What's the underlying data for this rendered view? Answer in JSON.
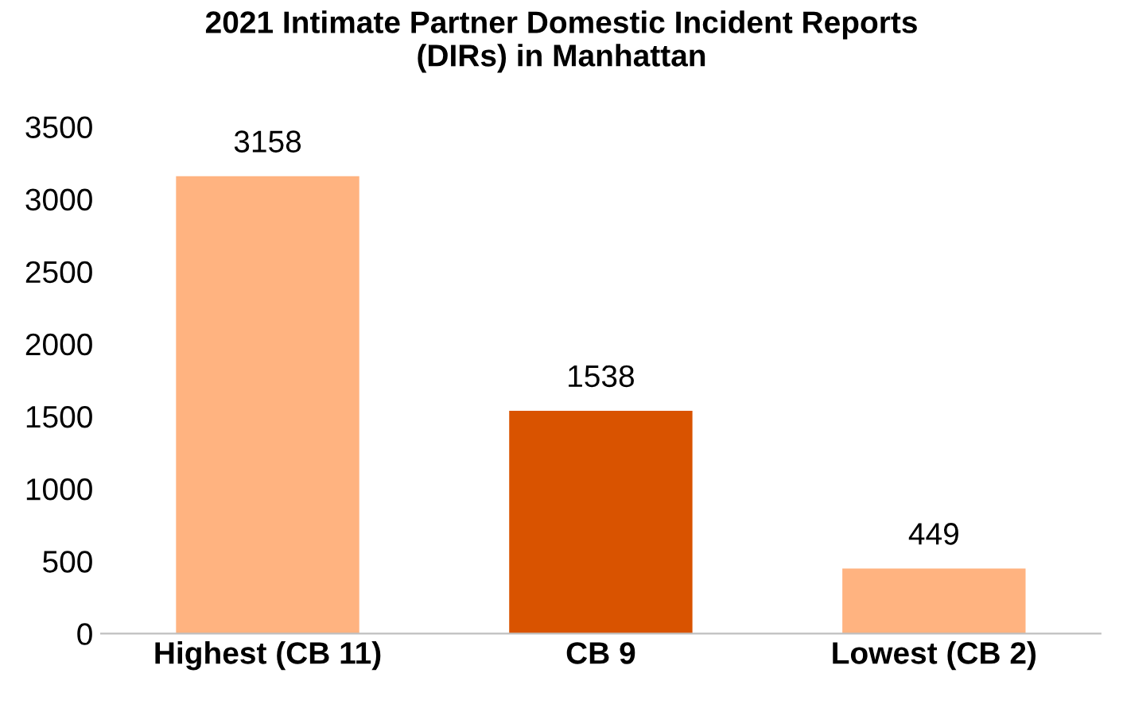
{
  "chart_data": {
    "type": "bar",
    "title": "2021 Intimate Partner Domestic Incident Reports\n(DIRs) in Manhattan",
    "categories": [
      "Highest (CB 11)",
      "CB 9",
      "Lowest (CB 2)"
    ],
    "values": [
      3158,
      1538,
      449
    ],
    "colors": [
      "#ffb380",
      "#d95300",
      "#ffb380"
    ],
    "ylim": [
      0,
      3500
    ],
    "yticks": [
      0,
      500,
      1000,
      1500,
      2000,
      2500,
      3000,
      3500
    ],
    "data_labels": true,
    "grid": false
  }
}
